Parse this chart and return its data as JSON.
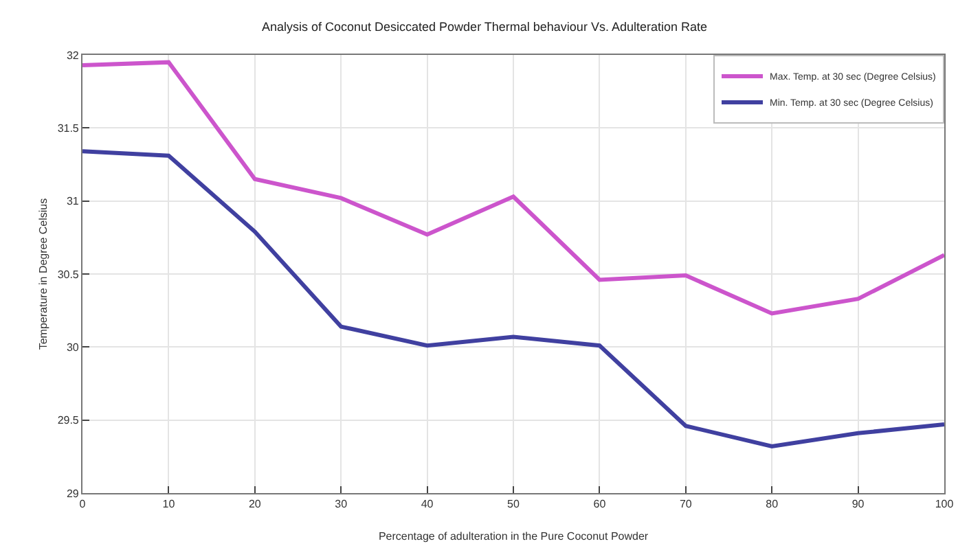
{
  "chart_data": {
    "type": "line",
    "title": "Analysis of Coconut Desiccated Powder Thermal behaviour Vs. Adulteration Rate",
    "xlabel": "Percentage of adulteration in the Pure Coconut Powder",
    "ylabel": "Temperature in Degree Celsius",
    "x": [
      0,
      10,
      20,
      30,
      40,
      50,
      60,
      70,
      80,
      90,
      100
    ],
    "series": [
      {
        "name": "Max. Temp. at 30 sec (Degree Celsius)",
        "color": "#cc55cc",
        "values": [
          31.93,
          31.95,
          31.15,
          31.02,
          30.77,
          31.03,
          30.46,
          30.49,
          30.23,
          30.33,
          30.63
        ]
      },
      {
        "name": "Min. Temp. at 30 sec (Degree Celsius)",
        "color": "#4040a0",
        "values": [
          31.34,
          31.31,
          30.79,
          30.14,
          30.01,
          30.07,
          30.01,
          29.46,
          29.32,
          29.41,
          29.47
        ]
      }
    ],
    "xlim": [
      0,
      100
    ],
    "xticks": [
      0,
      10,
      20,
      30,
      40,
      50,
      60,
      70,
      80,
      90,
      100
    ],
    "ylim": [
      29,
      32
    ],
    "yticks": [
      29,
      29.5,
      30,
      30.5,
      31,
      31.5,
      32
    ],
    "grid": true,
    "legend": "top right",
    "marker": "none",
    "line_style": "solid"
  }
}
